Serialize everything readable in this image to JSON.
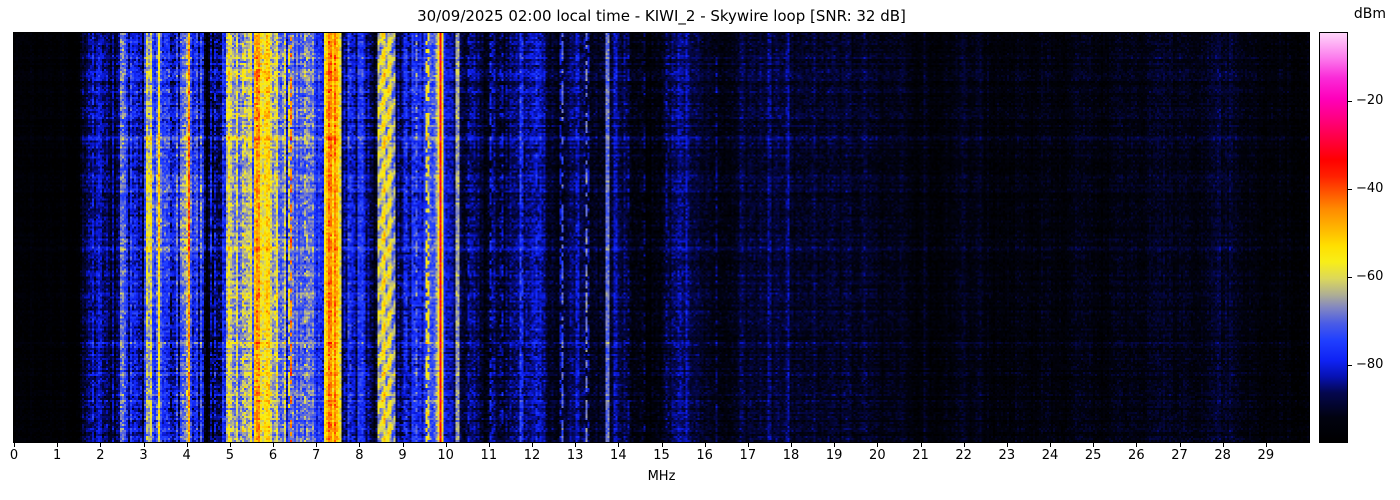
{
  "title": "30/09/2025 02:00 local time - KIWI_2 - Skywire loop [SNR: 32 dB]",
  "x_axis": {
    "label": "MHz",
    "tick_labels": [
      "0",
      "1",
      "2",
      "3",
      "4",
      "5",
      "6",
      "7",
      "8",
      "9",
      "10",
      "11",
      "12",
      "13",
      "14",
      "15",
      "16",
      "17",
      "18",
      "19",
      "20",
      "21",
      "22",
      "23",
      "24",
      "25",
      "26",
      "27",
      "28",
      "29"
    ],
    "tick_values": [
      0,
      1,
      2,
      3,
      4,
      5,
      6,
      7,
      8,
      9,
      10,
      11,
      12,
      13,
      14,
      15,
      16,
      17,
      18,
      19,
      20,
      21,
      22,
      23,
      24,
      25,
      26,
      27,
      28,
      29
    ],
    "range_mhz": [
      0,
      30
    ]
  },
  "colorbar": {
    "label": "dBm",
    "tick_labels": [
      "−20",
      "−40",
      "−60",
      "−80"
    ],
    "tick_values": [
      -20,
      -40,
      -60,
      -80
    ],
    "vmin": -97.5,
    "vmax": -4.5
  },
  "chart_data": {
    "type": "heatmap",
    "subtype": "hf-waterfall-spectrogram",
    "title": "30/09/2025 02:00 local time - KIWI_2 - Skywire loop [SNR: 32 dB]",
    "xlabel": "MHz",
    "ylabel": "",
    "x_range_mhz": [
      0,
      30
    ],
    "x_ticks_mhz": [
      0,
      1,
      2,
      3,
      4,
      5,
      6,
      7,
      8,
      9,
      10,
      11,
      12,
      13,
      14,
      15,
      16,
      17,
      18,
      19,
      20,
      21,
      22,
      23,
      24,
      25,
      26,
      27,
      28,
      29
    ],
    "grid": false,
    "legend": "none",
    "colorbar_label": "dBm",
    "colorbar_ticks_dbm": [
      -20,
      -40,
      -60,
      -80
    ],
    "value_range_dbm": [
      -97.5,
      -4.5
    ],
    "colormap_stops": [
      [
        0.0,
        "#000000"
      ],
      [
        0.06,
        "#010210"
      ],
      [
        0.12,
        "#04074e"
      ],
      [
        0.16,
        "#0712b4"
      ],
      [
        0.2,
        "#0f22f5"
      ],
      [
        0.25,
        "#2140ff"
      ],
      [
        0.29,
        "#4a5ce6"
      ],
      [
        0.33,
        "#8488c0"
      ],
      [
        0.36,
        "#aeae94"
      ],
      [
        0.4,
        "#dcd85a"
      ],
      [
        0.44,
        "#f8ee18"
      ],
      [
        0.48,
        "#ffdf00"
      ],
      [
        0.52,
        "#ffb800"
      ],
      [
        0.57,
        "#ff8a00"
      ],
      [
        0.61,
        "#ff5500"
      ],
      [
        0.65,
        "#ff2000"
      ],
      [
        0.69,
        "#ff0000"
      ],
      [
        0.74,
        "#ff0040"
      ],
      [
        0.79,
        "#ff0080"
      ],
      [
        0.84,
        "#ff00bb"
      ],
      [
        0.89,
        "#fa2ad8"
      ],
      [
        0.94,
        "#fc7ded"
      ],
      [
        1.0,
        "#ffd6fa"
      ]
    ],
    "bands": [
      {
        "from": 0.0,
        "to": 1.55,
        "base": -95.5,
        "noise": 2.5,
        "col": 1.5,
        "row": 0.35,
        "hatch": 0
      },
      {
        "from": 1.55,
        "to": 2.45,
        "base": -84.0,
        "noise": 5.0,
        "col": 5.0,
        "row": 0.85,
        "hatch": 0
      },
      {
        "from": 2.45,
        "to": 6.3,
        "base": -68.0,
        "noise": 7.0,
        "col": 11.0,
        "row": 1.0,
        "hatch": 0
      },
      {
        "from": 6.3,
        "to": 7.18,
        "base": -79.0,
        "noise": 6.0,
        "col": 8.0,
        "row": 0.9,
        "hatch": 0
      },
      {
        "from": 7.18,
        "to": 7.58,
        "base": -57.0,
        "noise": 6.0,
        "col": 5.0,
        "row": 0.55,
        "hatch": 0
      },
      {
        "from": 7.58,
        "to": 8.42,
        "base": -80.0,
        "noise": 6.0,
        "col": 7.0,
        "row": 0.9,
        "hatch": 0
      },
      {
        "from": 8.42,
        "to": 8.82,
        "base": -60.0,
        "noise": 5.0,
        "col": 4.0,
        "row": 0.5,
        "hatch": 6
      },
      {
        "from": 8.82,
        "to": 9.95,
        "base": -80.0,
        "noise": 6.0,
        "col": 6.0,
        "row": 0.85,
        "hatch": 0
      },
      {
        "from": 9.95,
        "to": 12.3,
        "base": -84.5,
        "noise": 5.0,
        "col": 4.0,
        "row": 0.75,
        "hatch": 0
      },
      {
        "from": 12.3,
        "to": 15.5,
        "base": -88.0,
        "noise": 4.5,
        "col": 3.0,
        "row": 0.6,
        "hatch": 0
      },
      {
        "from": 15.5,
        "to": 20.0,
        "base": -90.5,
        "noise": 4.0,
        "col": 2.0,
        "row": 0.5,
        "hatch": 0
      },
      {
        "from": 20.0,
        "to": 30.01,
        "base": -92.5,
        "noise": 3.5,
        "col": 1.6,
        "row": 0.45,
        "hatch": 0
      }
    ],
    "vertical_lines": [
      {
        "mhz": 1.84,
        "amp": 5,
        "w": 0.04,
        "dashed": 1
      },
      {
        "mhz": 2.05,
        "amp": 4,
        "w": 0.04,
        "dashed": 1
      },
      {
        "mhz": 3.1,
        "amp": 13,
        "w": 0.035,
        "dashed": 0
      },
      {
        "mhz": 3.35,
        "amp": 14,
        "w": 0.035,
        "dashed": 0
      },
      {
        "mhz": 3.62,
        "amp": 8,
        "w": 0.05,
        "dashed": 1
      },
      {
        "mhz": 3.85,
        "amp": 7,
        "w": 0.55,
        "dashed": 0
      },
      {
        "mhz": 4.05,
        "amp": 16,
        "w": 0.035,
        "dashed": 0
      },
      {
        "mhz": 4.35,
        "amp": 16,
        "w": 0.04,
        "dashed": 0
      },
      {
        "mhz": 4.62,
        "amp": 8,
        "w": 0.05,
        "dashed": 1
      },
      {
        "mhz": 4.98,
        "amp": 7,
        "w": 0.06,
        "dashed": 0
      },
      {
        "mhz": 5.32,
        "amp": 8,
        "w": 0.05,
        "dashed": 1
      },
      {
        "mhz": 5.62,
        "amp": 6,
        "w": 0.05,
        "dashed": 0
      },
      {
        "mhz": 6.05,
        "amp": 9,
        "w": 0.09,
        "dashed": 0
      },
      {
        "mhz": 6.4,
        "amp": 28,
        "w": 0.035,
        "dashed": 1
      },
      {
        "mhz": 6.75,
        "amp": 12,
        "w": 0.04,
        "dashed": 1
      },
      {
        "mhz": 7.32,
        "amp": 10,
        "w": 0.045,
        "dashed": 0
      },
      {
        "mhz": 7.44,
        "amp": 12,
        "w": 0.04,
        "dashed": 0
      },
      {
        "mhz": 7.78,
        "amp": 8,
        "w": 0.04,
        "dashed": 1
      },
      {
        "mhz": 8.05,
        "amp": 9,
        "w": 0.1,
        "dashed": 0
      },
      {
        "mhz": 8.57,
        "amp": 14,
        "w": 0.04,
        "dashed": 0
      },
      {
        "mhz": 8.7,
        "amp": 10,
        "w": 0.04,
        "dashed": 0
      },
      {
        "mhz": 9.1,
        "amp": 6,
        "w": 0.05,
        "dashed": 1
      },
      {
        "mhz": 9.32,
        "amp": 9,
        "w": 0.05,
        "dashed": 1
      },
      {
        "mhz": 9.58,
        "amp": 24,
        "w": 0.035,
        "dashed": 1
      },
      {
        "mhz": 9.89,
        "amp": 36,
        "w": 0.03,
        "dashed": 0
      },
      {
        "mhz": 10.28,
        "amp": 33,
        "w": 0.03,
        "dashed": 0
      },
      {
        "mhz": 10.52,
        "amp": 8,
        "w": 0.04,
        "dashed": 1
      },
      {
        "mhz": 11.05,
        "amp": 12,
        "w": 0.04,
        "dashed": 1
      },
      {
        "mhz": 11.3,
        "amp": 10,
        "w": 0.04,
        "dashed": 1
      },
      {
        "mhz": 11.76,
        "amp": 9,
        "w": 0.04,
        "dashed": 1
      },
      {
        "mhz": 12.12,
        "amp": 7,
        "w": 0.04,
        "dashed": 1
      },
      {
        "mhz": 12.7,
        "amp": 20,
        "w": 0.035,
        "dashed": 1
      },
      {
        "mhz": 13.05,
        "amp": 5,
        "w": 0.04,
        "dashed": 1
      },
      {
        "mhz": 13.27,
        "amp": 22,
        "w": 0.035,
        "dashed": 1
      },
      {
        "mhz": 13.75,
        "amp": 30,
        "w": 0.03,
        "dashed": 0
      },
      {
        "mhz": 13.95,
        "amp": 6,
        "w": 0.04,
        "dashed": 0
      },
      {
        "mhz": 14.25,
        "amp": 6,
        "w": 0.04,
        "dashed": 1
      },
      {
        "mhz": 14.6,
        "amp": 7,
        "w": 0.04,
        "dashed": 1
      },
      {
        "mhz": 15.12,
        "amp": 5,
        "w": 0.04,
        "dashed": 1
      },
      {
        "mhz": 15.58,
        "amp": 6,
        "w": 0.04,
        "dashed": 0
      },
      {
        "mhz": 16.28,
        "amp": 6,
        "w": 0.04,
        "dashed": 1
      },
      {
        "mhz": 16.85,
        "amp": 4,
        "w": 0.04,
        "dashed": 0
      },
      {
        "mhz": 17.5,
        "amp": 7,
        "w": 0.04,
        "dashed": 0
      },
      {
        "mhz": 17.92,
        "amp": 5,
        "w": 0.04,
        "dashed": 0
      },
      {
        "mhz": 18.55,
        "amp": 3,
        "w": 0.04,
        "dashed": 0
      },
      {
        "mhz": 19.7,
        "amp": 3,
        "w": 0.05,
        "dashed": 0
      },
      {
        "mhz": 21.1,
        "amp": 3,
        "w": 0.05,
        "dashed": 0
      },
      {
        "mhz": 22.4,
        "amp": 2.5,
        "w": 0.05,
        "dashed": 0
      },
      {
        "mhz": 23.25,
        "amp": 3,
        "w": 0.05,
        "dashed": 0
      },
      {
        "mhz": 24.8,
        "amp": 2,
        "w": 0.05,
        "dashed": 0
      },
      {
        "mhz": 26.3,
        "amp": 2,
        "w": 0.05,
        "dashed": 0
      },
      {
        "mhz": 27.9,
        "amp": 2,
        "w": 0.05,
        "dashed": 0
      }
    ],
    "horizontal_streaks": [
      {
        "y": 0.055,
        "amp": 3
      },
      {
        "y": 0.1,
        "amp": 5
      },
      {
        "y": 0.145,
        "amp": 3
      },
      {
        "y": 0.205,
        "amp": 4
      },
      {
        "y": 0.255,
        "amp": 6
      },
      {
        "y": 0.3,
        "amp": 3
      },
      {
        "y": 0.355,
        "amp": 4
      },
      {
        "y": 0.42,
        "amp": 3
      },
      {
        "y": 0.47,
        "amp": 2.5
      },
      {
        "y": 0.525,
        "amp": 4
      },
      {
        "y": 0.585,
        "amp": 3
      },
      {
        "y": 0.64,
        "amp": 5
      },
      {
        "y": 0.7,
        "amp": 3
      },
      {
        "y": 0.755,
        "amp": 4
      },
      {
        "y": 0.815,
        "amp": 3
      },
      {
        "y": 0.875,
        "amp": 4
      },
      {
        "y": 0.935,
        "amp": 3
      }
    ],
    "hot_blob": {
      "f_from": 3.05,
      "f_to": 4.6,
      "y_center": 0.42,
      "y_sigma": 0.16,
      "amp": 6
    },
    "seed": 1337
  }
}
